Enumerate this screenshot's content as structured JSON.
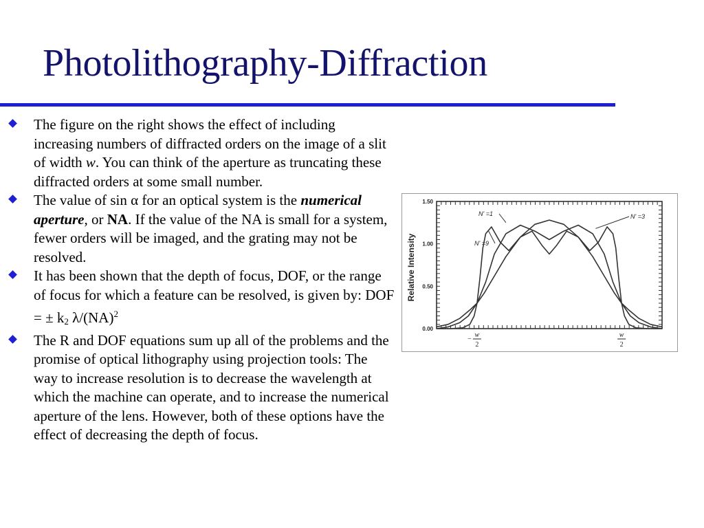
{
  "title": "Photolithography-Diffraction",
  "bullets": {
    "b1": {
      "t1": "The figure on the right shows the effect of including increasing numbers of diffracted orders on the image of a slit of width ",
      "w": "w",
      "t2": ". You can think of the aperture as truncating these diffracted orders at some small number."
    },
    "b2": {
      "t1": "The value of sin ",
      "alpha": "α",
      "t2": " for an optical system is the ",
      "na_term": "numerical aperture",
      "t3": ", or ",
      "na": "NA",
      "t4": ". If the value of the NA is small for a system, fewer orders will be imaged, and the grating may not be resolved."
    },
    "b3": {
      "t1": " It has been shown that the depth of focus, DOF, or the range of focus for which a feature can be resolved, is given by: DOF = ",
      "pm": "± k",
      "sub": "2",
      "t2": "  λ/(NA)",
      "sup": "2"
    },
    "b4": {
      "text": "The R and DOF equations sum up all of the problems and the promise of optical lithography using projection tools: The way to increase resolution is to decrease the wavelength at which the machine can operate, and to increase the numerical aperture of the lens. However, both of these options have the effect of decreasing the depth of focus."
    }
  },
  "colors": {
    "title": "#13136b",
    "accent": "#1f1fd6"
  },
  "chart_data": {
    "type": "line",
    "ylabel": "Relative  Intensity",
    "xlabel": "",
    "ylim": [
      0,
      1.5
    ],
    "y_ticks": [
      "1.50",
      "1.00",
      "0.50",
      "0.00"
    ],
    "y_tick_values": [
      1.5,
      1.0,
      0.5,
      0.0
    ],
    "x_tick_marks": [
      -0.5,
      0.5
    ],
    "x_tick_label_sign": "−",
    "x_tick_label_num": "w",
    "x_tick_label_den": "2",
    "xlim": [
      -0.78,
      0.78
    ],
    "series": [
      {
        "name": "N' =1",
        "x": [
          -0.78,
          -0.7,
          -0.62,
          -0.55,
          -0.5,
          -0.45,
          -0.38,
          -0.3,
          -0.2,
          -0.1,
          0,
          0.1,
          0.2,
          0.3,
          0.38,
          0.45,
          0.5,
          0.55,
          0.62,
          0.7,
          0.78
        ],
        "y": [
          0.02,
          0.05,
          0.12,
          0.22,
          0.3,
          0.42,
          0.62,
          0.85,
          1.08,
          1.23,
          1.28,
          1.23,
          1.08,
          0.85,
          0.62,
          0.42,
          0.3,
          0.22,
          0.12,
          0.05,
          0.02
        ]
      },
      {
        "name": "N' =3",
        "x": [
          -0.78,
          -0.7,
          -0.62,
          -0.56,
          -0.5,
          -0.44,
          -0.38,
          -0.3,
          -0.2,
          -0.1,
          0,
          0.1,
          0.2,
          0.3,
          0.38,
          0.44,
          0.5,
          0.56,
          0.62,
          0.7,
          0.78
        ],
        "y": [
          0.0,
          0.02,
          0.07,
          0.15,
          0.3,
          0.55,
          0.88,
          1.12,
          1.22,
          1.15,
          1.05,
          1.15,
          1.22,
          1.12,
          0.88,
          0.55,
          0.3,
          0.15,
          0.07,
          0.02,
          0.0
        ]
      },
      {
        "name": "N' =9",
        "x": [
          -0.78,
          -0.68,
          -0.6,
          -0.55,
          -0.52,
          -0.5,
          -0.48,
          -0.46,
          -0.44,
          -0.4,
          -0.34,
          -0.28,
          -0.2,
          -0.12,
          -0.05,
          0,
          0.05,
          0.12,
          0.2,
          0.28,
          0.34,
          0.4,
          0.44,
          0.46,
          0.48,
          0.5,
          0.52,
          0.55,
          0.6,
          0.68,
          0.78
        ],
        "y": [
          0.0,
          0.0,
          0.01,
          0.05,
          0.15,
          0.3,
          0.6,
          0.95,
          1.12,
          1.2,
          1.02,
          0.92,
          1.08,
          1.15,
          0.98,
          0.88,
          0.98,
          1.15,
          1.08,
          0.92,
          1.02,
          1.2,
          1.12,
          0.95,
          0.6,
          0.3,
          0.15,
          0.05,
          0.01,
          0.0,
          0.0
        ]
      }
    ],
    "labels": [
      "N' =1",
      "N' =3",
      "N' =9"
    ],
    "grid": false
  }
}
